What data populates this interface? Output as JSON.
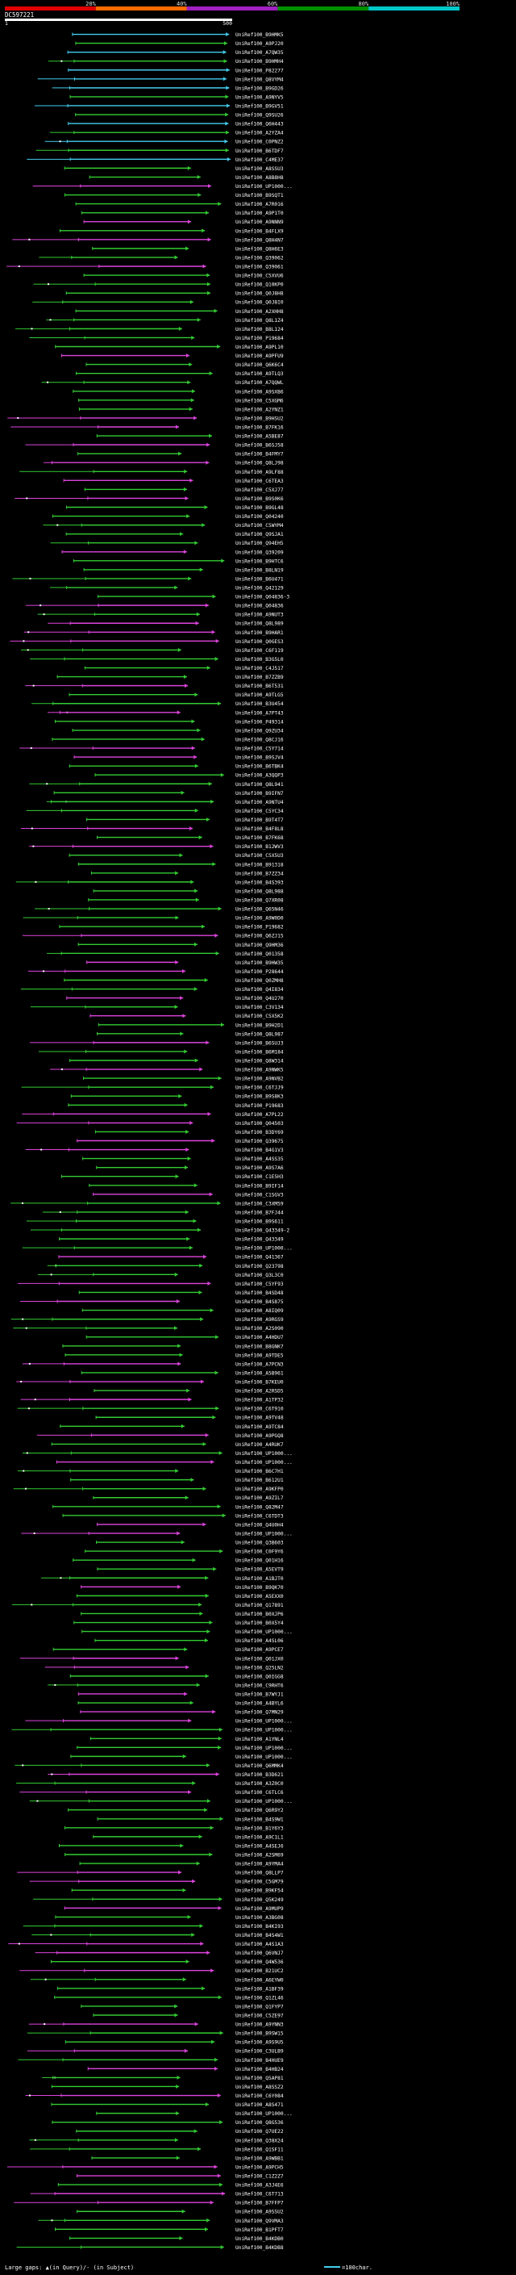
{
  "chart_data": {
    "type": "alignment-overview",
    "query": {
      "name": "DC597221",
      "start": 1,
      "end": 500
    },
    "legend": {
      "identity_bands": [
        "20%",
        "40%",
        "60%",
        "80%",
        "100%"
      ],
      "band_colors": [
        "#e00000",
        "#ff6a00",
        "#a020c0",
        "#009000",
        "#00c8c8"
      ],
      "bottom_text": "Large gaps: ▲(in Query)/- (in Subject)",
      "scale_text": "=100char."
    },
    "colors": {
      "cyan": "#44ccee",
      "green": "#33cc33",
      "magenta": "#dd44dd"
    },
    "hit_names": [
      "UniRef100_B9HMK5",
      "UniRef100_A9PJ20",
      "UniRef100_A7QW35",
      "UniRef100_B9HMH4",
      "UniRef100_P82277",
      "UniRef100_Q8VYM4",
      "UniRef100_B9GD26",
      "UniRef100_A9NYV5",
      "UniRef100_B9GV51",
      "UniRef100_Q9SU26",
      "UniRef100_Q6H443",
      "UniRef100_A2YZA4",
      "UniRef100_C0PNZ2",
      "UniRef100_B6TDF7",
      "UniRef100_C4ME37",
      "UniRef100_A8SSU3",
      "UniRef100_A8B8H8",
      "UniRef100_UP1000...",
      "UniRef100_B9SQT1",
      "UniRef100_A7R016",
      "UniRef100_A9P1T0",
      "UniRef100_A9NNN9",
      "UniRef100_B4FLX9",
      "UniRef100_Q8H4N7",
      "UniRef100_Q8H6E3",
      "UniRef100_Q39062",
      "UniRef100_Q39061",
      "UniRef100_C5XVU6",
      "UniRef100_Q10KP0",
      "UniRef100_Q0J8H8",
      "UniRef100_Q0J8I0",
      "UniRef100_A2XHH8",
      "UniRef100_Q8L1Z4",
      "UniRef100_B8L124",
      "UniRef100_P19684",
      "UniRef100_A9PL10",
      "UniRef100_A9PFU9",
      "UniRef100_Q6K6C4",
      "UniRef100_A9TLQ3",
      "UniRef100_A7QQWL",
      "UniRef100_A9SXB6",
      "UniRef100_C5XGM6",
      "UniRef100_A2YNZ1",
      "UniRef100_B9HSU2",
      "UniRef100_B7FK16",
      "UniRef100_A5BE87",
      "UniRef100_B6SJ58",
      "UniRef100_B4FMY7",
      "UniRef100_Q8LJ98",
      "UniRef100_A9LF88",
      "UniRef100_C6TEA3",
      "UniRef100_C5XJ77",
      "UniRef100_B9S0K6",
      "UniRef100_B9GL48",
      "UniRef100_Q04240",
      "UniRef100_C5WYM4",
      "UniRef100_Q9SJA1",
      "UniRef100_Q94EH5",
      "UniRef100_Q39209",
      "UniRef100_B9HTC6",
      "UniRef100_B8LN19",
      "UniRef100_B6U471",
      "UniRef100_Q42129",
      "UniRef100_Q04836-3",
      "UniRef100_Q04836",
      "UniRef100_A9NUT3",
      "UniRef100_Q8L989",
      "UniRef100_B9HAR1",
      "UniRef100_Q0GES3",
      "UniRef100_C6F119",
      "UniRef100_B3G5L0",
      "UniRef100_C4J517",
      "UniRef100_B7ZZB9",
      "UniRef100_B6T531",
      "UniRef100_A9TLG5",
      "UniRef100_B3U454",
      "UniRef100_A7PT43",
      "UniRef100_P49314",
      "UniRef100_Q9ZU34",
      "UniRef100_Q8CJ16",
      "UniRef100_C5Y714",
      "UniRef100_B9SJV4",
      "UniRef100_B6TBK4",
      "UniRef100_A3QQP3",
      "UniRef100_Q8L941",
      "UniRef100_B9IFN7",
      "UniRef100_A9NTU4",
      "UniRef100_C5YC34",
      "UniRef100_B9T4T7",
      "UniRef100_B4F8L8",
      "UniRef100_B7FK68",
      "UniRef100_B12WV3",
      "UniRef100_C5X5U3",
      "UniRef100_B91318",
      "UniRef100_B7ZZ34",
      "UniRef100_B4S393",
      "UniRef100_Q8L988",
      "UniRef100_Q7XR08",
      "UniRef100_Q65N46",
      "UniRef100_A9W0D0",
      "UniRef100_P19682",
      "UniRef100_Q6ZJ15",
      "UniRef100_Q9HM36",
      "UniRef100_Q01358",
      "UniRef100_B9HW35",
      "UniRef100_P28644",
      "UniRef100_Q0ZMH8",
      "UniRef100_Q4I834",
      "UniRef100_Q4U270",
      "UniRef100_C3V134",
      "UniRef100_C5X5K2",
      "UniRef100_B9H2D1",
      "UniRef100_Q8L987",
      "UniRef100_B6SUJ3",
      "UniRef100_B6M184",
      "UniRef100_Q8W314",
      "UniRef100_A9NWK5",
      "UniRef100_A9NVB2",
      "UniRef100_C6TJJ9",
      "UniRef100_B9S8K3",
      "UniRef100_P19683",
      "UniRef100_A7PL22",
      "UniRef100_Q04503",
      "UniRef100_B3DY69",
      "UniRef100_Q39675",
      "UniRef100_B4G1V3",
      "UniRef100_A4SS35",
      "UniRef100_A9S7A6",
      "UniRef100_C1E5H3",
      "UniRef100_B9IF14",
      "UniRef100_C1SGV3",
      "UniRef100_C3XM59",
      "UniRef100_B7FJ44",
      "UniRef100_B9S611",
      "UniRef100_Q43349-2",
      "UniRef100_Q43349",
      "UniRef100_UP1000...",
      "UniRef100_Q41367",
      "UniRef100_Q23798",
      "UniRef100_Q3L3C0",
      "UniRef100_C5YF93",
      "UniRef100_B4SD48",
      "UniRef100_B4S875",
      "UniRef100_A8IQ09",
      "UniRef100_A9RGS9",
      "UniRef100_A2S090",
      "UniRef100_A4HDU7",
      "UniRef100_B8GNK7",
      "UniRef100_A9TDE5",
      "UniRef100_A7PCN3",
      "UniRef100_A5B961",
      "UniRef100_B7KEU0",
      "UniRef100_A2RSD5",
      "UniRef100_A1TP32",
      "UniRef100_C6T910",
      "UniRef100_A9TV48",
      "UniRef100_A9TC84",
      "UniRef100_A9PGQ8",
      "UniRef100_A4RUK7",
      "UniRef100_UP1000...",
      "UniRef100_UP1000...",
      "UniRef100_B6C7H1",
      "UniRef100_B612U1",
      "UniRef100_A9KFP0",
      "UniRef100_A9ZIL7",
      "UniRef100_Q82M47",
      "UniRef100_C6TDT3",
      "UniRef100_Q4U0H4",
      "UniRef100_UP1000...",
      "UniRef100_Q3B603",
      "UniRef100_C0F9Y6",
      "UniRef100_Q01H16",
      "UniRef100_A5EVT9",
      "UniRef100_A1BJT0",
      "UniRef100_B9QK70",
      "UniRef100_A5EXX0",
      "UniRef100_Q17891",
      "UniRef100_B0XJP6",
      "UniRef100_B0X5Y4",
      "UniRef100_UP1000...",
      "UniRef100_A4SL06",
      "UniRef100_A9PCE7",
      "UniRef100_Q01JX0",
      "UniRef100_Q25LN2",
      "UniRef100_Q0IGG8",
      "UniRef100_C9RHT6",
      "UniRef100_B7WYJ1",
      "UniRef100_A4BYL6",
      "UniRef100_Q7MN29",
      "UniRef100_UP1000...",
      "UniRef100_UP1000...",
      "UniRef100_A1YNL4",
      "UniRef100_UP1000...",
      "UniRef100_UP1000...",
      "UniRef100_Q6MMK4",
      "UniRef100_B3D621",
      "UniRef100_A3Z0C0",
      "UniRef100_C6TLC6",
      "UniRef100_UP1000...",
      "UniRef100_Q6R9Y2",
      "UniRef100_B4S9W1",
      "UniRef100_B1Y6Y3",
      "UniRef100_A9C1L1",
      "UniRef100_A4SEJ6",
      "UniRef100_A2SM69",
      "UniRef100_A9YMA4",
      "UniRef100_Q8LLP7",
      "UniRef100_C5GM79",
      "UniRef100_B9KF54",
      "UniRef100_Q5K249",
      "UniRef100_A9MUP9",
      "UniRef100_A3BG08",
      "UniRef100_B4KI93",
      "UniRef100_B4S4W1",
      "UniRef100_A4S1A3",
      "UniRef100_Q6VNJ7",
      "UniRef100_Q4W536",
      "UniRef100_B21UC2",
      "UniRef100_A6EYW0",
      "UniRef100_A1BF39",
      "UniRef100_Q1ZL46",
      "UniRef100_Q1FYP7",
      "UniRef100_C5ZE97",
      "UniRef100_A9YNN3",
      "UniRef100_B9SW15",
      "UniRef100_A9S9U5",
      "UniRef100_C3ULB9",
      "UniRef100_B4HUE9",
      "UniRef100_B4HB24",
      "UniRef100_Q5AP81",
      "UniRef100_A8SSZ2",
      "UniRef100_C6Y084",
      "UniRef100_A8S471",
      "UniRef100_UP1000...",
      "UniRef100_Q8G536",
      "UniRef100_Q7UE22",
      "UniRef100_Q38X24",
      "UniRef100_Q1SF11",
      "UniRef100_A9WBB1",
      "UniRef100_A9PCH5",
      "UniRef100_C1Z2Z7",
      "UniRef100_A3J4E6",
      "UniRef100_C6T713",
      "UniRef100_B7FFP7",
      "UniRef100_A9SSU2",
      "UniRef100_Q9VMA3",
      "UniRef100_B1PFT7",
      "UniRef100_B4KDB0",
      "UniRef100_B4KDB8"
    ]
  }
}
